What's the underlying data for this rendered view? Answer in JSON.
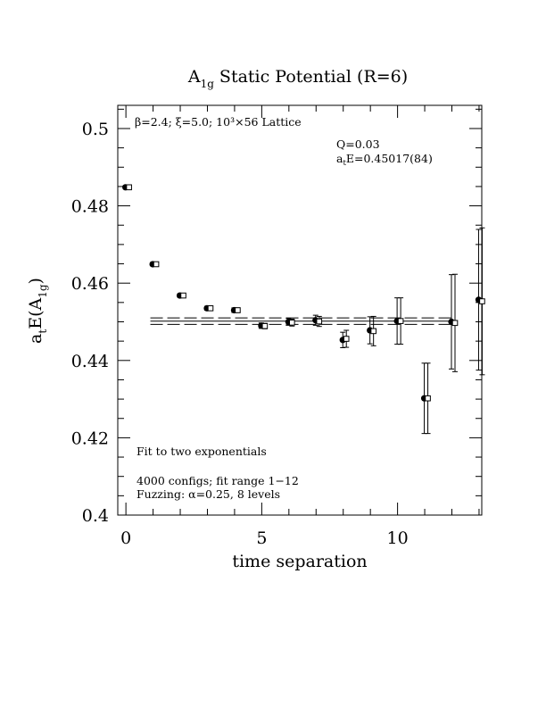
{
  "chart_data": {
    "type": "scatter",
    "title_main": "A",
    "title_sub": "1g",
    "title_rest": " Static Potential (R=6)",
    "xlabel": "time separation",
    "ylabel_main": "a",
    "ylabel_sub1": "t",
    "ylabel_mid": "E(A",
    "ylabel_sub2": "1g",
    "ylabel_end": ")",
    "xlim": [
      -0.3,
      13.1
    ],
    "ylim": [
      0.4,
      0.506
    ],
    "x_ticks": [
      0,
      5,
      10
    ],
    "x_tick_labels": [
      "0",
      "5",
      "10"
    ],
    "y_ticks": [
      0.4,
      0.42,
      0.44,
      0.46,
      0.48,
      0.5
    ],
    "y_tick_labels": [
      "0.4",
      "0.42",
      "0.44",
      "0.46",
      "0.48",
      "0.5"
    ],
    "lattice_label": "β=2.4; ξ=5.0; 10³×56 Lattice",
    "q_label": "Q=0.03",
    "energy_label_main": "a",
    "energy_label_sub": "t",
    "energy_label_rest": "E=0.45017(84)",
    "fit_note": "Fit to two exponentials",
    "configs_note": "4000 configs; fit range 1−12",
    "fuzzing_note": "Fuzzing: α=0.25, 8 levels",
    "fit": {
      "value": 0.45017,
      "error": 0.00084
    },
    "series": [
      {
        "marker": "filled-circle",
        "points": [
          {
            "x": 0,
            "y": 0.4848,
            "err": 0.0004
          },
          {
            "x": 1,
            "y": 0.4649,
            "err": 0.0004
          },
          {
            "x": 2,
            "y": 0.4568,
            "err": 0.0004
          },
          {
            "x": 3,
            "y": 0.4535,
            "err": 0.0005
          },
          {
            "x": 4,
            "y": 0.453,
            "err": 0.0006
          },
          {
            "x": 5,
            "y": 0.449,
            "err": 0.0007
          },
          {
            "x": 6,
            "y": 0.45,
            "err": 0.0009
          },
          {
            "x": 7,
            "y": 0.4504,
            "err": 0.0013
          },
          {
            "x": 8,
            "y": 0.4453,
            "err": 0.002
          },
          {
            "x": 9,
            "y": 0.4478,
            "err": 0.0035
          },
          {
            "x": 10,
            "y": 0.4502,
            "err": 0.006
          },
          {
            "x": 11,
            "y": 0.4302,
            "err": 0.0091
          },
          {
            "x": 12,
            "y": 0.45,
            "err": 0.0122
          },
          {
            "x": 13,
            "y": 0.4557,
            "err": 0.0182
          }
        ]
      },
      {
        "marker": "open-square",
        "points": [
          {
            "x": 0,
            "y": 0.4848,
            "err": 0.0004
          },
          {
            "x": 1,
            "y": 0.4649,
            "err": 0.0004
          },
          {
            "x": 2,
            "y": 0.4568,
            "err": 0.0004
          },
          {
            "x": 3,
            "y": 0.4535,
            "err": 0.0005
          },
          {
            "x": 4,
            "y": 0.453,
            "err": 0.0006
          },
          {
            "x": 5,
            "y": 0.4489,
            "err": 0.0007
          },
          {
            "x": 6,
            "y": 0.4498,
            "err": 0.0009
          },
          {
            "x": 7,
            "y": 0.4501,
            "err": 0.0013
          },
          {
            "x": 8,
            "y": 0.4456,
            "err": 0.0022
          },
          {
            "x": 9,
            "y": 0.4476,
            "err": 0.0038
          },
          {
            "x": 10,
            "y": 0.4502,
            "err": 0.006
          },
          {
            "x": 11,
            "y": 0.4302,
            "err": 0.0091
          },
          {
            "x": 12,
            "y": 0.4497,
            "err": 0.0126
          },
          {
            "x": 13,
            "y": 0.4553,
            "err": 0.019
          }
        ]
      }
    ]
  }
}
